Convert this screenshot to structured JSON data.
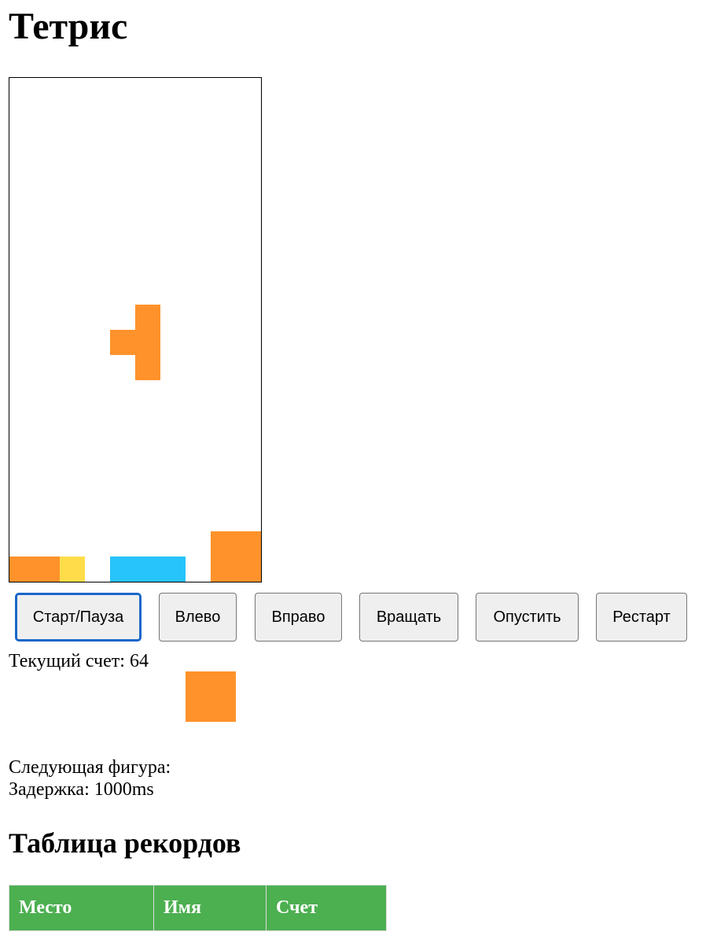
{
  "title": "Тетрис",
  "colors": {
    "orange": "#ff922b",
    "yellow": "#ffdd4a",
    "cyan": "#27c3fb",
    "button_bg": "#efefef",
    "focus_border": "#1a66c9",
    "table_header": "#4caf50"
  },
  "board": {
    "columns": 10,
    "rows": 20,
    "cells": [
      {
        "col": 5,
        "row": 9,
        "color": "orange",
        "piece": "falling"
      },
      {
        "col": 4,
        "row": 10,
        "color": "orange",
        "piece": "falling"
      },
      {
        "col": 5,
        "row": 10,
        "color": "orange",
        "piece": "falling"
      },
      {
        "col": 5,
        "row": 11,
        "color": "orange",
        "piece": "falling"
      },
      {
        "col": 8,
        "row": 18,
        "color": "orange",
        "piece": "locked"
      },
      {
        "col": 9,
        "row": 18,
        "color": "orange",
        "piece": "locked"
      },
      {
        "col": 0,
        "row": 19,
        "color": "orange",
        "piece": "locked"
      },
      {
        "col": 1,
        "row": 19,
        "color": "orange",
        "piece": "locked"
      },
      {
        "col": 2,
        "row": 19,
        "color": "yellow",
        "piece": "locked"
      },
      {
        "col": 4,
        "row": 19,
        "color": "cyan",
        "piece": "locked"
      },
      {
        "col": 5,
        "row": 19,
        "color": "cyan",
        "piece": "locked"
      },
      {
        "col": 6,
        "row": 19,
        "color": "cyan",
        "piece": "locked"
      },
      {
        "col": 8,
        "row": 19,
        "color": "orange",
        "piece": "locked"
      },
      {
        "col": 9,
        "row": 19,
        "color": "orange",
        "piece": "locked"
      }
    ]
  },
  "buttons": {
    "start_pause": "Старт/Пауза",
    "left": "Влево",
    "right": "Вправо",
    "rotate": "Вращать",
    "drop": "Опустить",
    "restart": "Рестарт"
  },
  "status": {
    "score_text": "Текущий счет: 64",
    "next_label": "Следующая фигура:",
    "delay_text": "Задержка: 1000ms"
  },
  "next_piece": {
    "color": "orange",
    "cells": [
      {
        "col": 0,
        "row": 0
      }
    ]
  },
  "records": {
    "heading": "Таблица рекордов",
    "columns": [
      "Место",
      "Имя",
      "Счет"
    ],
    "rows": []
  }
}
